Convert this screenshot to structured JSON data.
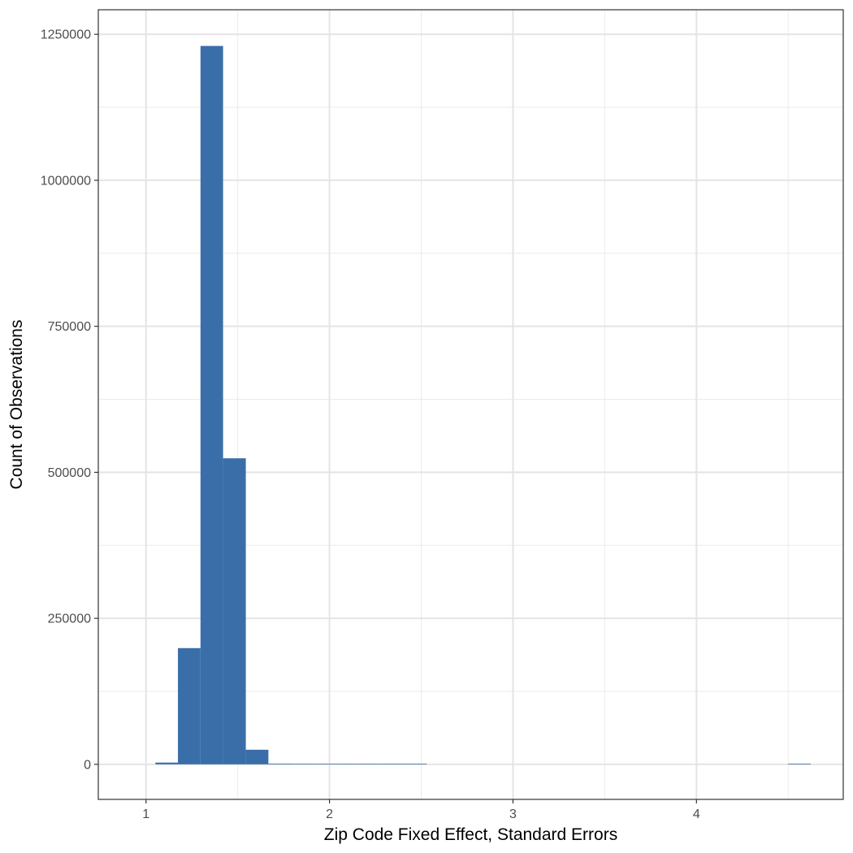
{
  "chart_data": {
    "type": "bar",
    "title": "",
    "xlabel": "Zip Code Fixed Effect, Standard Errors",
    "ylabel": "Count of Observations",
    "xlim": [
      0.74,
      4.8
    ],
    "ylim": [
      -60000,
      1292000
    ],
    "x_ticks": [
      1,
      2,
      3,
      4
    ],
    "x_tick_labels": [
      "1",
      "2",
      "3",
      "4"
    ],
    "x_minor_ticks": [
      1.5,
      2.5,
      3.5,
      4.5
    ],
    "y_ticks": [
      0,
      250000,
      500000,
      750000,
      1000000,
      1250000
    ],
    "y_tick_labels": [
      "0",
      "250000",
      "500000",
      "750000",
      "1000000",
      "1250000"
    ],
    "y_minor_ticks": [
      125000,
      375000,
      625000,
      875000,
      1125000
    ],
    "grid": true,
    "bin_width": 0.1233,
    "bins": [
      {
        "x0": 1.051,
        "x1": 1.174,
        "count": 3000
      },
      {
        "x0": 1.174,
        "x1": 1.297,
        "count": 199000
      },
      {
        "x0": 1.297,
        "x1": 1.42,
        "count": 1230000
      },
      {
        "x0": 1.42,
        "x1": 1.544,
        "count": 524000
      },
      {
        "x0": 1.544,
        "x1": 1.667,
        "count": 25000
      },
      {
        "x0": 1.667,
        "x1": 1.79,
        "count": 1200
      },
      {
        "x0": 1.79,
        "x1": 1.914,
        "count": 600
      },
      {
        "x0": 1.914,
        "x1": 2.037,
        "count": 250
      },
      {
        "x0": 2.037,
        "x1": 2.16,
        "count": 150
      },
      {
        "x0": 2.16,
        "x1": 2.284,
        "count": 400
      },
      {
        "x0": 2.284,
        "x1": 2.407,
        "count": 80
      },
      {
        "x0": 2.407,
        "x1": 2.53,
        "count": 50
      },
      {
        "x0": 4.5,
        "x1": 4.623,
        "count": 20
      }
    ],
    "bar_color": "#3a6ea8"
  }
}
